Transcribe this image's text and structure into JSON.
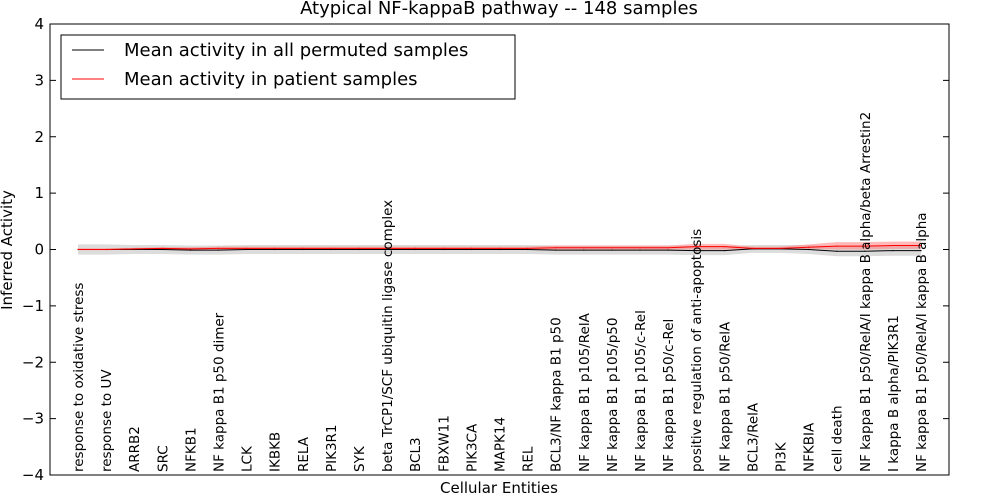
{
  "chart_data": {
    "type": "line",
    "title": "Atypical NF-kappaB pathway -- 148 samples",
    "xlabel": "Cellular Entities",
    "ylabel": "Inferred Activity",
    "ylim": [
      -4,
      4
    ],
    "yticks": [
      -4,
      -3,
      -2,
      -1,
      0,
      1,
      2,
      3,
      4
    ],
    "ytick_labels": [
      "−4",
      "−3",
      "−2",
      "−1",
      "0",
      "1",
      "2",
      "3",
      "4"
    ],
    "categories": [
      "response to oxidative stress",
      "response to UV",
      "ARRB2",
      "SRC",
      "NFKB1",
      "NF kappa B1 p50 dimer",
      "LCK",
      "IKBKB",
      "RELA",
      "PIK3R1",
      "SYK",
      "beta TrCP1/SCF ubiquitin ligase complex",
      "BCL3",
      "FBXW11",
      "PIK3CA",
      "MAPK14",
      "REL",
      "BCL3/NF kappa B1 p50",
      "NF kappa B1 p105/RelA",
      "NF kappa B1 p105/p50",
      "NF kappa B1 p105/c-Rel",
      "NF kappa B1 p50/c-Rel",
      "positive regulation of anti-apoptosis",
      "NF kappa B1 p50/RelA",
      "BCL3/RelA",
      "PI3K",
      "NFKBIA",
      "cell death",
      "NF kappa B1 p50/RelA/I kappa B alpha/beta Arrestin2",
      "I kappa B alpha/PIK3R1",
      "NF kappa B1 p50/RelA/I kappa B alpha"
    ],
    "series": [
      {
        "name": "Mean activity in all permuted samples",
        "color": "#000000",
        "values": [
          0.0,
          0.0,
          0.0,
          0.0,
          -0.01,
          -0.01,
          0.0,
          0.0,
          0.0,
          0.0,
          0.0,
          0.0,
          0.0,
          0.0,
          0.0,
          0.0,
          0.0,
          -0.01,
          -0.01,
          -0.01,
          -0.01,
          -0.01,
          -0.02,
          -0.02,
          0.01,
          0.01,
          0.0,
          -0.03,
          -0.03,
          -0.02,
          -0.02
        ],
        "band_lower": [
          -0.09,
          -0.09,
          -0.08,
          -0.08,
          -0.09,
          -0.09,
          -0.08,
          -0.08,
          -0.08,
          -0.08,
          -0.08,
          -0.08,
          -0.08,
          -0.08,
          -0.08,
          -0.08,
          -0.08,
          -0.09,
          -0.09,
          -0.09,
          -0.09,
          -0.09,
          -0.1,
          -0.1,
          -0.06,
          -0.06,
          -0.08,
          -0.12,
          -0.12,
          -0.11,
          -0.11
        ],
        "band_upper": [
          0.09,
          0.09,
          0.08,
          0.08,
          0.07,
          0.07,
          0.08,
          0.08,
          0.08,
          0.08,
          0.08,
          0.08,
          0.08,
          0.08,
          0.08,
          0.08,
          0.08,
          0.07,
          0.07,
          0.07,
          0.07,
          0.07,
          0.06,
          0.06,
          0.08,
          0.08,
          0.08,
          0.06,
          0.06,
          0.07,
          0.07
        ]
      },
      {
        "name": "Mean activity in patient samples",
        "color": "#ff0000",
        "values": [
          0.0,
          0.0,
          0.01,
          0.02,
          0.01,
          0.02,
          0.02,
          0.02,
          0.02,
          0.02,
          0.02,
          0.02,
          0.02,
          0.02,
          0.02,
          0.02,
          0.02,
          0.03,
          0.03,
          0.03,
          0.03,
          0.03,
          0.05,
          0.05,
          0.02,
          0.02,
          0.04,
          0.06,
          0.06,
          0.07,
          0.07
        ],
        "band_lower": [
          -0.01,
          -0.01,
          0.0,
          0.0,
          -0.01,
          0.0,
          0.0,
          0.0,
          0.0,
          0.0,
          0.0,
          0.0,
          0.0,
          0.0,
          0.0,
          0.0,
          0.0,
          0.0,
          0.0,
          0.0,
          0.0,
          0.0,
          0.0,
          0.0,
          0.0,
          0.0,
          0.01,
          0.0,
          0.0,
          0.01,
          0.01
        ],
        "band_upper": [
          0.02,
          0.02,
          0.03,
          0.04,
          0.04,
          0.05,
          0.05,
          0.05,
          0.05,
          0.05,
          0.05,
          0.05,
          0.05,
          0.05,
          0.05,
          0.05,
          0.05,
          0.07,
          0.07,
          0.07,
          0.07,
          0.07,
          0.1,
          0.1,
          0.05,
          0.05,
          0.09,
          0.13,
          0.13,
          0.14,
          0.14
        ]
      }
    ],
    "legend": {
      "position": "top-left",
      "entries": [
        "Mean activity in all permuted samples",
        "Mean activity in patient samples"
      ]
    },
    "grid": false
  }
}
